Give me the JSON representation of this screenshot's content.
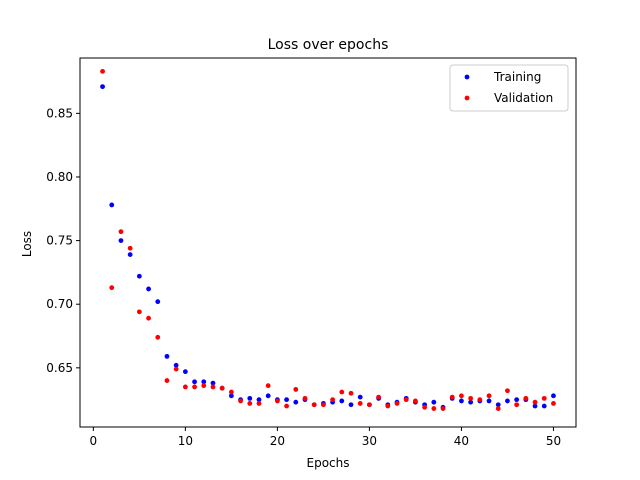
{
  "chart_data": {
    "type": "scatter",
    "title": "Loss over epochs",
    "xlabel": "Epochs",
    "ylabel": "Loss",
    "xlim": [
      -1.45,
      52.45
    ],
    "ylim": [
      0.6035,
      0.8935
    ],
    "xticks": [
      0,
      10,
      20,
      30,
      40,
      50
    ],
    "xtick_labels": [
      "0",
      "10",
      "20",
      "30",
      "40",
      "50"
    ],
    "yticks": [
      0.65,
      0.7,
      0.75,
      0.8,
      0.85
    ],
    "ytick_labels": [
      "0.65",
      "0.70",
      "0.75",
      "0.80",
      "0.85"
    ],
    "legend_position": "top-right",
    "x": [
      1,
      2,
      3,
      4,
      5,
      6,
      7,
      8,
      9,
      10,
      11,
      12,
      13,
      14,
      15,
      16,
      17,
      18,
      19,
      20,
      21,
      22,
      23,
      24,
      25,
      26,
      27,
      28,
      29,
      30,
      31,
      32,
      33,
      34,
      35,
      36,
      37,
      38,
      39,
      40,
      41,
      42,
      43,
      44,
      45,
      46,
      47,
      48,
      49,
      50
    ],
    "series": [
      {
        "name": "Training",
        "color": "#0000ff",
        "values": [
          0.871,
          0.778,
          0.75,
          0.739,
          0.722,
          0.712,
          0.702,
          0.659,
          0.652,
          0.647,
          0.639,
          0.639,
          0.638,
          0.634,
          0.628,
          0.625,
          0.626,
          0.625,
          0.628,
          0.625,
          0.625,
          0.623,
          0.625,
          0.621,
          0.622,
          0.623,
          0.624,
          0.621,
          0.627,
          0.621,
          0.626,
          0.621,
          0.623,
          0.626,
          0.623,
          0.621,
          0.623,
          0.619,
          0.626,
          0.624,
          0.623,
          0.624,
          0.624,
          0.621,
          0.624,
          0.625,
          0.625,
          0.62,
          0.62,
          0.628
        ]
      },
      {
        "name": "Validation",
        "color": "#ff0000",
        "values": [
          0.883,
          0.713,
          0.757,
          0.744,
          0.694,
          0.689,
          0.674,
          0.64,
          0.649,
          0.635,
          0.635,
          0.636,
          0.635,
          0.634,
          0.631,
          0.624,
          0.622,
          0.622,
          0.636,
          0.624,
          0.62,
          0.633,
          0.626,
          0.621,
          0.621,
          0.625,
          0.631,
          0.63,
          0.622,
          0.621,
          0.627,
          0.62,
          0.622,
          0.625,
          0.624,
          0.619,
          0.618,
          0.618,
          0.627,
          0.628,
          0.626,
          0.625,
          0.628,
          0.618,
          0.632,
          0.621,
          0.626,
          0.623,
          0.626,
          0.622
        ]
      }
    ]
  }
}
